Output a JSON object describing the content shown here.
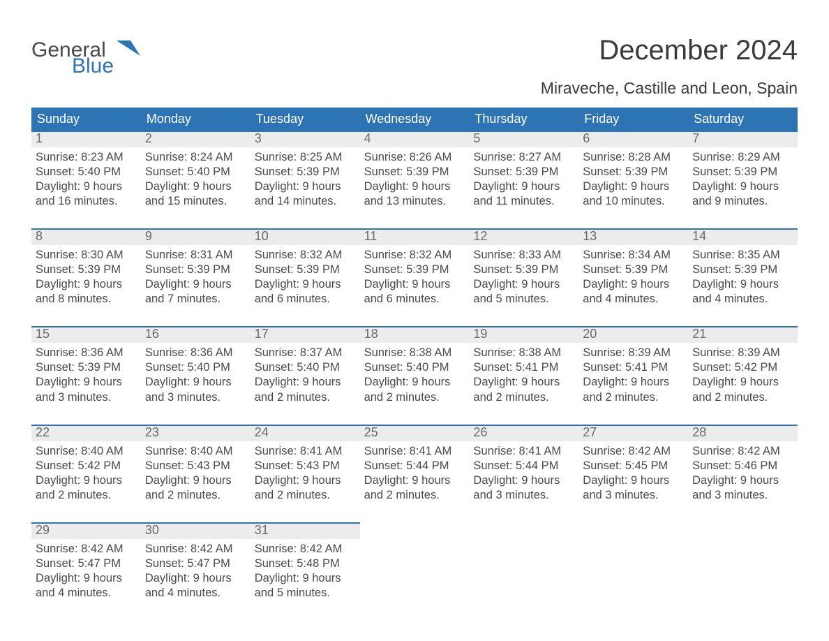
{
  "brand": {
    "general": "General",
    "blue": "Blue"
  },
  "title": "December 2024",
  "location": "Miraveche, Castille and Leon, Spain",
  "colors": {
    "header_bg": "#2d74b5",
    "header_text": "#ffffff",
    "daynum_bg": "#ececec",
    "rule": "#2d74b5",
    "body_text": "#4a4a4a",
    "page_bg": "#ffffff"
  },
  "layout": {
    "columns": 7,
    "rows": 5
  },
  "typography": {
    "title_fontsize": 40,
    "location_fontsize": 23,
    "dayhead_fontsize": 18,
    "daynum_fontsize": 18,
    "content_fontsize": 16.5
  },
  "day_headers": [
    "Sunday",
    "Monday",
    "Tuesday",
    "Wednesday",
    "Thursday",
    "Friday",
    "Saturday"
  ],
  "labels": {
    "sunrise": "Sunrise:",
    "sunset": "Sunset:",
    "daylight": "Daylight:"
  },
  "weeks": [
    [
      {
        "n": "1",
        "sunrise": "8:23 AM",
        "sunset": "5:40 PM",
        "daylight1": "9 hours",
        "daylight2": "and 16 minutes."
      },
      {
        "n": "2",
        "sunrise": "8:24 AM",
        "sunset": "5:40 PM",
        "daylight1": "9 hours",
        "daylight2": "and 15 minutes."
      },
      {
        "n": "3",
        "sunrise": "8:25 AM",
        "sunset": "5:39 PM",
        "daylight1": "9 hours",
        "daylight2": "and 14 minutes."
      },
      {
        "n": "4",
        "sunrise": "8:26 AM",
        "sunset": "5:39 PM",
        "daylight1": "9 hours",
        "daylight2": "and 13 minutes."
      },
      {
        "n": "5",
        "sunrise": "8:27 AM",
        "sunset": "5:39 PM",
        "daylight1": "9 hours",
        "daylight2": "and 11 minutes."
      },
      {
        "n": "6",
        "sunrise": "8:28 AM",
        "sunset": "5:39 PM",
        "daylight1": "9 hours",
        "daylight2": "and 10 minutes."
      },
      {
        "n": "7",
        "sunrise": "8:29 AM",
        "sunset": "5:39 PM",
        "daylight1": "9 hours",
        "daylight2": "and 9 minutes."
      }
    ],
    [
      {
        "n": "8",
        "sunrise": "8:30 AM",
        "sunset": "5:39 PM",
        "daylight1": "9 hours",
        "daylight2": "and 8 minutes."
      },
      {
        "n": "9",
        "sunrise": "8:31 AM",
        "sunset": "5:39 PM",
        "daylight1": "9 hours",
        "daylight2": "and 7 minutes."
      },
      {
        "n": "10",
        "sunrise": "8:32 AM",
        "sunset": "5:39 PM",
        "daylight1": "9 hours",
        "daylight2": "and 6 minutes."
      },
      {
        "n": "11",
        "sunrise": "8:32 AM",
        "sunset": "5:39 PM",
        "daylight1": "9 hours",
        "daylight2": "and 6 minutes."
      },
      {
        "n": "12",
        "sunrise": "8:33 AM",
        "sunset": "5:39 PM",
        "daylight1": "9 hours",
        "daylight2": "and 5 minutes."
      },
      {
        "n": "13",
        "sunrise": "8:34 AM",
        "sunset": "5:39 PM",
        "daylight1": "9 hours",
        "daylight2": "and 4 minutes."
      },
      {
        "n": "14",
        "sunrise": "8:35 AM",
        "sunset": "5:39 PM",
        "daylight1": "9 hours",
        "daylight2": "and 4 minutes."
      }
    ],
    [
      {
        "n": "15",
        "sunrise": "8:36 AM",
        "sunset": "5:39 PM",
        "daylight1": "9 hours",
        "daylight2": "and 3 minutes."
      },
      {
        "n": "16",
        "sunrise": "8:36 AM",
        "sunset": "5:40 PM",
        "daylight1": "9 hours",
        "daylight2": "and 3 minutes."
      },
      {
        "n": "17",
        "sunrise": "8:37 AM",
        "sunset": "5:40 PM",
        "daylight1": "9 hours",
        "daylight2": "and 2 minutes."
      },
      {
        "n": "18",
        "sunrise": "8:38 AM",
        "sunset": "5:40 PM",
        "daylight1": "9 hours",
        "daylight2": "and 2 minutes."
      },
      {
        "n": "19",
        "sunrise": "8:38 AM",
        "sunset": "5:41 PM",
        "daylight1": "9 hours",
        "daylight2": "and 2 minutes."
      },
      {
        "n": "20",
        "sunrise": "8:39 AM",
        "sunset": "5:41 PM",
        "daylight1": "9 hours",
        "daylight2": "and 2 minutes."
      },
      {
        "n": "21",
        "sunrise": "8:39 AM",
        "sunset": "5:42 PM",
        "daylight1": "9 hours",
        "daylight2": "and 2 minutes."
      }
    ],
    [
      {
        "n": "22",
        "sunrise": "8:40 AM",
        "sunset": "5:42 PM",
        "daylight1": "9 hours",
        "daylight2": "and 2 minutes."
      },
      {
        "n": "23",
        "sunrise": "8:40 AM",
        "sunset": "5:43 PM",
        "daylight1": "9 hours",
        "daylight2": "and 2 minutes."
      },
      {
        "n": "24",
        "sunrise": "8:41 AM",
        "sunset": "5:43 PM",
        "daylight1": "9 hours",
        "daylight2": "and 2 minutes."
      },
      {
        "n": "25",
        "sunrise": "8:41 AM",
        "sunset": "5:44 PM",
        "daylight1": "9 hours",
        "daylight2": "and 2 minutes."
      },
      {
        "n": "26",
        "sunrise": "8:41 AM",
        "sunset": "5:44 PM",
        "daylight1": "9 hours",
        "daylight2": "and 3 minutes."
      },
      {
        "n": "27",
        "sunrise": "8:42 AM",
        "sunset": "5:45 PM",
        "daylight1": "9 hours",
        "daylight2": "and 3 minutes."
      },
      {
        "n": "28",
        "sunrise": "8:42 AM",
        "sunset": "5:46 PM",
        "daylight1": "9 hours",
        "daylight2": "and 3 minutes."
      }
    ],
    [
      {
        "n": "29",
        "sunrise": "8:42 AM",
        "sunset": "5:47 PM",
        "daylight1": "9 hours",
        "daylight2": "and 4 minutes."
      },
      {
        "n": "30",
        "sunrise": "8:42 AM",
        "sunset": "5:47 PM",
        "daylight1": "9 hours",
        "daylight2": "and 4 minutes."
      },
      {
        "n": "31",
        "sunrise": "8:42 AM",
        "sunset": "5:48 PM",
        "daylight1": "9 hours",
        "daylight2": "and 5 minutes."
      },
      null,
      null,
      null,
      null
    ]
  ]
}
